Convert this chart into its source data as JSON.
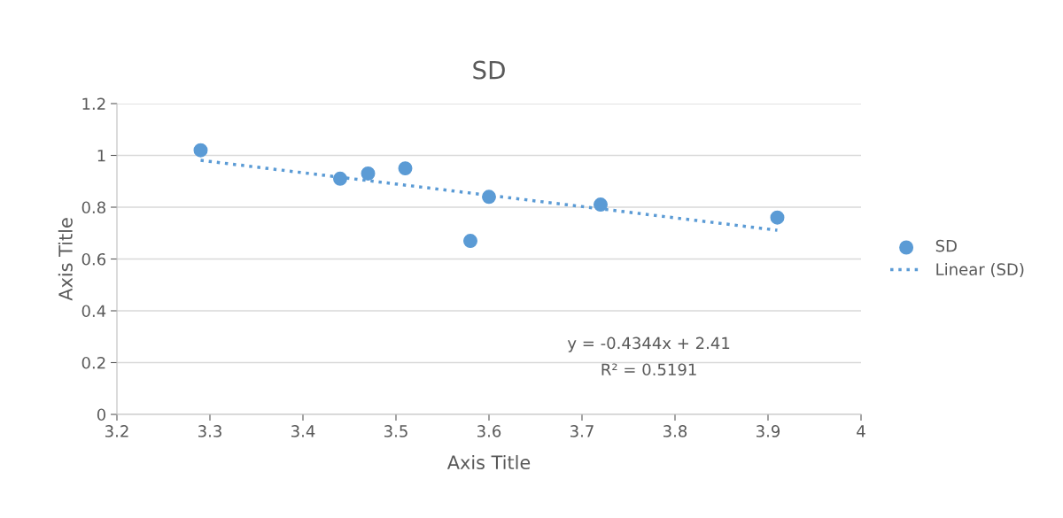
{
  "chart_data": {
    "type": "scatter",
    "title": "SD",
    "xlabel": "Axis Title",
    "ylabel": "Axis Title",
    "series": [
      {
        "name": "SD",
        "color": "#5b9bd5",
        "marker": "circle",
        "x": [
          3.29,
          3.44,
          3.47,
          3.51,
          3.58,
          3.6,
          3.72,
          3.91
        ],
        "values": [
          1.02,
          0.91,
          0.93,
          0.95,
          0.67,
          0.84,
          0.81,
          0.76
        ]
      },
      {
        "name": "Linear (SD)",
        "type": "line",
        "color": "#5b9bd5",
        "line_style": "dotted",
        "x": [
          3.29,
          3.91
        ],
        "values": [
          0.981,
          0.711
        ]
      }
    ],
    "xlim": [
      3.2,
      4
    ],
    "xticks": [
      3.2,
      3.3,
      3.4,
      3.5,
      3.6,
      3.7,
      3.8,
      3.9,
      4
    ],
    "ylim": [
      0,
      1.2
    ],
    "yticks": [
      0,
      0.2,
      0.4,
      0.6,
      0.8,
      1,
      1.2
    ],
    "grid": "y",
    "legend": "right",
    "annotations": [
      "y = -0.4344x + 2.41",
      "R² = 0.5191"
    ]
  }
}
